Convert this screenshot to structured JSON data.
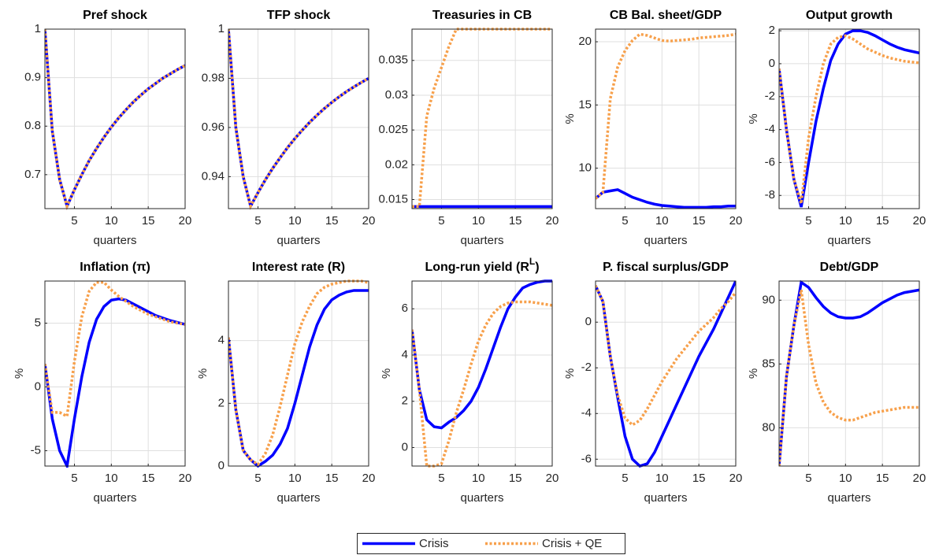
{
  "chart_data": [
    {
      "type": "line",
      "title": "Pref shock",
      "xlabel": "quarters",
      "x": [
        1,
        2,
        3,
        4,
        5,
        6,
        7,
        8,
        9,
        10,
        11,
        12,
        13,
        14,
        15,
        16,
        17,
        18,
        19,
        20
      ],
      "xlim": [
        1,
        20
      ],
      "xticks": [
        5,
        10,
        15,
        20
      ],
      "ylim": [
        0.63,
        1
      ],
      "yticks": [
        0.7,
        0.8,
        0.9,
        1
      ],
      "grid": true,
      "series": [
        {
          "name": "Crisis",
          "color": "#0000ff",
          "style": "solid",
          "values": [
            1,
            0.79,
            0.69,
            0.635,
            0.669,
            0.7,
            0.729,
            0.754,
            0.777,
            0.798,
            0.817,
            0.834,
            0.85,
            0.864,
            0.877,
            0.888,
            0.899,
            0.908,
            0.917,
            0.925
          ]
        },
        {
          "name": "Crisis + QE",
          "color": "#f7a04b",
          "style": "dotted",
          "values": [
            1,
            0.79,
            0.69,
            0.635,
            0.669,
            0.7,
            0.729,
            0.754,
            0.777,
            0.798,
            0.817,
            0.834,
            0.85,
            0.864,
            0.877,
            0.888,
            0.899,
            0.908,
            0.917,
            0.925
          ]
        }
      ]
    },
    {
      "type": "line",
      "title": "TFP shock",
      "xlabel": "quarters",
      "x": [
        1,
        2,
        3,
        4,
        5,
        6,
        7,
        8,
        9,
        10,
        11,
        12,
        13,
        14,
        15,
        16,
        17,
        18,
        19,
        20
      ],
      "xlim": [
        1,
        20
      ],
      "xticks": [
        5,
        10,
        15,
        20
      ],
      "ylim": [
        0.927,
        1
      ],
      "yticks": [
        0.94,
        0.96,
        0.98,
        1
      ],
      "grid": true,
      "series": [
        {
          "name": "Crisis",
          "color": "#0000ff",
          "style": "solid",
          "values": [
            1,
            0.96,
            0.94,
            0.928,
            0.9335,
            0.9387,
            0.9434,
            0.9477,
            0.9518,
            0.9555,
            0.9589,
            0.9621,
            0.965,
            0.9677,
            0.9702,
            0.9725,
            0.9746,
            0.9765,
            0.9783,
            0.98
          ]
        },
        {
          "name": "Crisis + QE",
          "color": "#f7a04b",
          "style": "dotted",
          "values": [
            1,
            0.96,
            0.94,
            0.928,
            0.9335,
            0.9387,
            0.9434,
            0.9477,
            0.9518,
            0.9555,
            0.9589,
            0.9621,
            0.965,
            0.9677,
            0.9702,
            0.9725,
            0.9746,
            0.9765,
            0.9783,
            0.98
          ]
        }
      ]
    },
    {
      "type": "line",
      "title": "Treasuries in CB",
      "xlabel": "quarters",
      "x": [
        1,
        2,
        3,
        4,
        5,
        6,
        7,
        8,
        9,
        10,
        11,
        12,
        13,
        14,
        15,
        16,
        17,
        18,
        19,
        20
      ],
      "xlim": [
        1,
        20
      ],
      "xticks": [
        5,
        10,
        15,
        20
      ],
      "ylim": [
        0.0137,
        0.0395
      ],
      "yticks": [
        0.015,
        0.02,
        0.025,
        0.03,
        0.035
      ],
      "grid": true,
      "series": [
        {
          "name": "Crisis",
          "color": "#0000ff",
          "style": "solid",
          "values": [
            0.014,
            0.014,
            0.014,
            0.014,
            0.014,
            0.014,
            0.014,
            0.014,
            0.014,
            0.014,
            0.014,
            0.014,
            0.014,
            0.014,
            0.014,
            0.014,
            0.014,
            0.014,
            0.014,
            0.014
          ]
        },
        {
          "name": "Crisis + QE",
          "color": "#f7a04b",
          "style": "dotted",
          "values": [
            0.014,
            0.014,
            0.027,
            0.031,
            0.034,
            0.037,
            0.0395,
            0.0395,
            0.0395,
            0.0395,
            0.0395,
            0.0395,
            0.0395,
            0.0395,
            0.0395,
            0.0395,
            0.0395,
            0.0395,
            0.0395,
            0.0395
          ]
        }
      ]
    },
    {
      "type": "line",
      "title": "CB Bal. sheet/GDP",
      "xlabel": "quarters",
      "ylabel": "%",
      "x": [
        1,
        2,
        3,
        4,
        5,
        6,
        7,
        8,
        9,
        10,
        11,
        12,
        13,
        14,
        15,
        16,
        17,
        18,
        19,
        20
      ],
      "xlim": [
        1,
        20
      ],
      "xticks": [
        5,
        10,
        15,
        20
      ],
      "ylim": [
        6.8,
        21
      ],
      "yticks": [
        10,
        15,
        20
      ],
      "grid": true,
      "series": [
        {
          "name": "Crisis",
          "color": "#0000ff",
          "style": "solid",
          "values": [
            7.6,
            8.1,
            8.2,
            8.3,
            8.0,
            7.7,
            7.5,
            7.3,
            7.15,
            7.05,
            7.0,
            6.95,
            6.9,
            6.9,
            6.9,
            6.9,
            6.95,
            6.95,
            7.0,
            7.0
          ]
        },
        {
          "name": "Crisis + QE",
          "color": "#f7a04b",
          "style": "dotted",
          "values": [
            7.6,
            8.1,
            15.5,
            18.0,
            19.3,
            20.1,
            20.6,
            20.5,
            20.3,
            20.1,
            20.05,
            20.1,
            20.15,
            20.2,
            20.3,
            20.35,
            20.4,
            20.45,
            20.5,
            20.6
          ]
        }
      ]
    },
    {
      "type": "line",
      "title": "Output growth",
      "xlabel": "quarters",
      "ylabel": "%",
      "x": [
        1,
        2,
        3,
        4,
        5,
        6,
        7,
        8,
        9,
        10,
        11,
        12,
        13,
        14,
        15,
        16,
        17,
        18,
        19,
        20
      ],
      "xlim": [
        1,
        20
      ],
      "xticks": [
        5,
        10,
        15,
        20
      ],
      "ylim": [
        -8.8,
        2.1
      ],
      "yticks": [
        -8,
        -6,
        -4,
        -2,
        0,
        2
      ],
      "grid": true,
      "series": [
        {
          "name": "Crisis",
          "color": "#0000ff",
          "style": "solid",
          "values": [
            -0.3,
            -4,
            -7,
            -8.7,
            -6,
            -3.5,
            -1.5,
            0.2,
            1.2,
            1.8,
            2.0,
            2.0,
            1.9,
            1.7,
            1.45,
            1.2,
            1.0,
            0.85,
            0.75,
            0.65
          ]
        },
        {
          "name": "Crisis + QE",
          "color": "#f7a04b",
          "style": "dotted",
          "values": [
            -0.3,
            -4,
            -7,
            -8.5,
            -4.5,
            -2,
            0,
            1.2,
            1.6,
            1.7,
            1.5,
            1.2,
            0.9,
            0.7,
            0.5,
            0.35,
            0.25,
            0.15,
            0.1,
            0.05
          ]
        }
      ]
    },
    {
      "type": "line",
      "title": "Inflation (π)",
      "xlabel": "quarters",
      "ylabel": "%",
      "x": [
        1,
        2,
        3,
        4,
        5,
        6,
        7,
        8,
        9,
        10,
        11,
        12,
        13,
        14,
        15,
        16,
        17,
        18,
        19,
        20
      ],
      "xlim": [
        1,
        20
      ],
      "xticks": [
        5,
        10,
        15,
        20
      ],
      "ylim": [
        -6.2,
        8.3
      ],
      "yticks": [
        -5,
        0,
        5
      ],
      "grid": true,
      "series": [
        {
          "name": "Crisis",
          "color": "#0000ff",
          "style": "solid",
          "values": [
            1.8,
            -2.5,
            -5,
            -6.2,
            -2.5,
            0.8,
            3.5,
            5.3,
            6.3,
            6.8,
            6.9,
            6.8,
            6.5,
            6.2,
            5.9,
            5.6,
            5.4,
            5.2,
            5.05,
            4.9
          ]
        },
        {
          "name": "Crisis + QE",
          "color": "#f7a04b",
          "style": "dotted",
          "values": [
            1.8,
            -2,
            -2,
            -2.3,
            2,
            5.5,
            7.5,
            8.2,
            8.2,
            7.6,
            7.1,
            6.7,
            6.3,
            6.0,
            5.7,
            5.5,
            5.3,
            5.1,
            5.0,
            4.9
          ]
        }
      ]
    },
    {
      "type": "line",
      "title": "Interest rate (R)",
      "xlabel": "quarters",
      "ylabel": "%",
      "x": [
        1,
        2,
        3,
        4,
        5,
        6,
        7,
        8,
        9,
        10,
        11,
        12,
        13,
        14,
        15,
        16,
        17,
        18,
        19,
        20
      ],
      "xlim": [
        1,
        20
      ],
      "xticks": [
        5,
        10,
        15,
        20
      ],
      "ylim": [
        0,
        5.9
      ],
      "yticks": [
        0,
        2,
        4
      ],
      "grid": true,
      "series": [
        {
          "name": "Crisis",
          "color": "#0000ff",
          "style": "solid",
          "values": [
            4.1,
            1.8,
            0.5,
            0.2,
            0.0,
            0.15,
            0.35,
            0.7,
            1.2,
            2.0,
            2.9,
            3.8,
            4.5,
            5.0,
            5.3,
            5.45,
            5.55,
            5.6,
            5.6,
            5.6
          ]
        },
        {
          "name": "Crisis + QE",
          "color": "#f7a04b",
          "style": "dotted",
          "values": [
            4.1,
            1.8,
            0.5,
            0.2,
            0.05,
            0.4,
            1.0,
            1.9,
            2.9,
            3.9,
            4.6,
            5.1,
            5.5,
            5.7,
            5.8,
            5.85,
            5.9,
            5.9,
            5.9,
            5.85
          ]
        }
      ]
    },
    {
      "type": "line",
      "title": [
        "Long-run yield (R",
        "L",
        ")"
      ],
      "xlabel": "quarters",
      "ylabel": "%",
      "x": [
        1,
        2,
        3,
        4,
        5,
        6,
        7,
        8,
        9,
        10,
        11,
        12,
        13,
        14,
        15,
        16,
        17,
        18,
        19,
        20
      ],
      "xlim": [
        1,
        20
      ],
      "xticks": [
        5,
        10,
        15,
        20
      ],
      "ylim": [
        -0.8,
        7.2
      ],
      "yticks": [
        0,
        2,
        4,
        6
      ],
      "grid": true,
      "series": [
        {
          "name": "Crisis",
          "color": "#0000ff",
          "style": "solid",
          "values": [
            5.1,
            2.5,
            1.2,
            0.9,
            0.85,
            1.1,
            1.3,
            1.6,
            2.0,
            2.6,
            3.4,
            4.3,
            5.2,
            6.0,
            6.5,
            6.9,
            7.05,
            7.15,
            7.2,
            7.2
          ]
        },
        {
          "name": "Crisis + QE",
          "color": "#f7a04b",
          "style": "dotted",
          "values": [
            5.1,
            2.5,
            -0.8,
            -0.8,
            -0.7,
            0.3,
            1.5,
            2.5,
            3.6,
            4.6,
            5.3,
            5.8,
            6.1,
            6.25,
            6.3,
            6.3,
            6.3,
            6.25,
            6.2,
            6.15
          ]
        }
      ]
    },
    {
      "type": "line",
      "title": "P. fiscal surplus/GDP",
      "xlabel": "quarters",
      "ylabel": "%",
      "x": [
        1,
        2,
        3,
        4,
        5,
        6,
        7,
        8,
        9,
        10,
        11,
        12,
        13,
        14,
        15,
        16,
        17,
        18,
        19,
        20
      ],
      "xlim": [
        1,
        20
      ],
      "xticks": [
        5,
        10,
        15,
        20
      ],
      "ylim": [
        -6.3,
        1.8
      ],
      "yticks": [
        -6,
        -4,
        -2,
        0
      ],
      "grid": true,
      "series": [
        {
          "name": "Crisis",
          "color": "#0000ff",
          "style": "solid",
          "values": [
            1.6,
            0.9,
            -1.5,
            -3.3,
            -5.0,
            -6.0,
            -6.3,
            -6.2,
            -5.7,
            -5.0,
            -4.3,
            -3.6,
            -2.9,
            -2.2,
            -1.5,
            -0.9,
            -0.3,
            0.4,
            1.1,
            1.8
          ]
        },
        {
          "name": "Crisis + QE",
          "color": "#f7a04b",
          "style": "dotted",
          "values": [
            1.6,
            0.9,
            -1.5,
            -3.2,
            -4.2,
            -4.5,
            -4.3,
            -3.8,
            -3.2,
            -2.6,
            -2.1,
            -1.6,
            -1.2,
            -0.8,
            -0.4,
            -0.1,
            0.2,
            0.6,
            0.9,
            1.3
          ]
        }
      ]
    },
    {
      "type": "line",
      "title": "Debt/GDP",
      "xlabel": "quarters",
      "ylabel": "%",
      "x": [
        1,
        2,
        3,
        4,
        5,
        6,
        7,
        8,
        9,
        10,
        11,
        12,
        13,
        14,
        15,
        16,
        17,
        18,
        19,
        20
      ],
      "xlim": [
        1,
        20
      ],
      "xticks": [
        5,
        10,
        15,
        20
      ],
      "ylim": [
        77,
        91.5
      ],
      "yticks": [
        80,
        85,
        90
      ],
      "grid": true,
      "series": [
        {
          "name": "Crisis",
          "color": "#0000ff",
          "style": "solid",
          "values": [
            77,
            84,
            88,
            91.4,
            91.0,
            90.2,
            89.5,
            89.0,
            88.7,
            88.6,
            88.6,
            88.7,
            89.0,
            89.4,
            89.8,
            90.1,
            90.4,
            90.6,
            90.7,
            90.8
          ]
        },
        {
          "name": "Crisis + QE",
          "color": "#f7a04b",
          "style": "dotted",
          "values": [
            77,
            84,
            88,
            90.8,
            86.5,
            83.5,
            82,
            81.2,
            80.8,
            80.6,
            80.6,
            80.8,
            81.0,
            81.2,
            81.3,
            81.4,
            81.5,
            81.6,
            81.6,
            81.6
          ]
        }
      ]
    }
  ]
}
